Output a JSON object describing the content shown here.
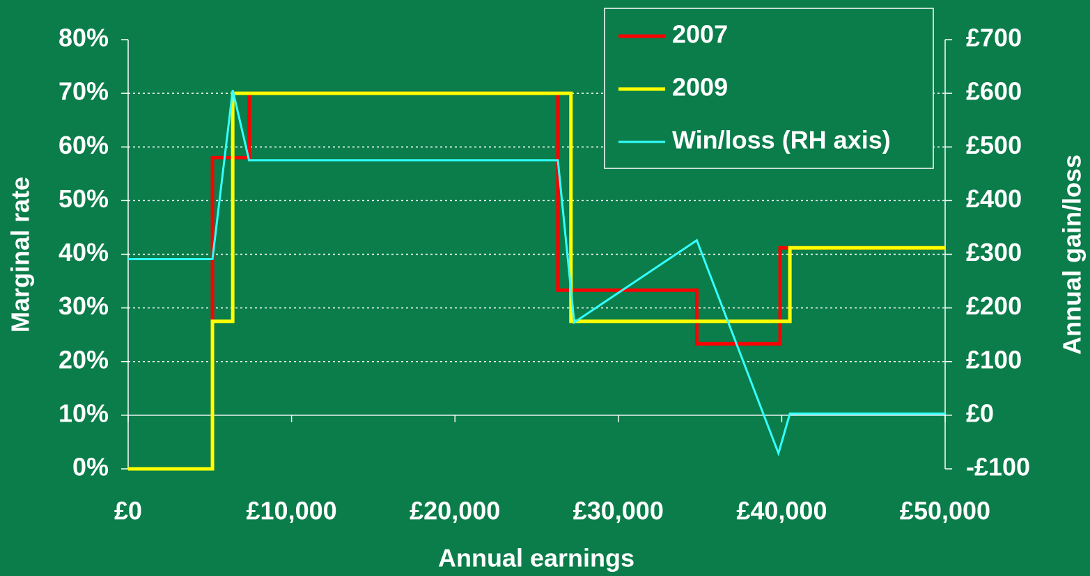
{
  "chart_data": {
    "type": "line",
    "xlabel": "Annual earnings",
    "ylabel": "Marginal rate",
    "y2label": "Annual gain/loss",
    "xlim": [
      0,
      50000
    ],
    "xticks": [
      {
        "value": 0,
        "label": "£0"
      },
      {
        "value": 10000,
        "label": "£10,000"
      },
      {
        "value": 20000,
        "label": "£20,000"
      },
      {
        "value": 30000,
        "label": "£30,000"
      },
      {
        "value": 40000,
        "label": "£40,000"
      },
      {
        "value": 50000,
        "label": "£50,000"
      }
    ],
    "ylim": [
      0,
      80
    ],
    "yticks": [
      {
        "value": 0,
        "label": "0%"
      },
      {
        "value": 10,
        "label": "10%"
      },
      {
        "value": 20,
        "label": "20%"
      },
      {
        "value": 30,
        "label": "30%"
      },
      {
        "value": 40,
        "label": "40%"
      },
      {
        "value": 50,
        "label": "50%"
      },
      {
        "value": 60,
        "label": "60%"
      },
      {
        "value": 70,
        "label": "70%"
      },
      {
        "value": 80,
        "label": "80%"
      }
    ],
    "y2lim": [
      -100,
      700
    ],
    "y2ticks": [
      {
        "value": -100,
        "label": "-£100"
      },
      {
        "value": 0,
        "label": "£0"
      },
      {
        "value": 100,
        "label": "£100"
      },
      {
        "value": 200,
        "label": "£200"
      },
      {
        "value": 300,
        "label": "£300"
      },
      {
        "value": 400,
        "label": "£400"
      },
      {
        "value": 500,
        "label": "£500"
      },
      {
        "value": 600,
        "label": "£600"
      },
      {
        "value": 700,
        "label": "£700"
      }
    ],
    "grid": true,
    "legend": "upper right",
    "series": [
      {
        "name": "2007",
        "color": "#ff0000",
        "width": 5,
        "x": [
          0,
          5160,
          5160,
          7400,
          7400,
          26300,
          26300,
          34800,
          34800,
          39900,
          39900,
          50000
        ],
        "values": [
          0,
          0,
          58,
          58,
          70,
          70,
          33.3,
          33.3,
          23.3,
          23.3,
          41.2,
          41.2
        ]
      },
      {
        "name": "2009",
        "color": "#ffff00",
        "width": 5,
        "x": [
          0,
          5160,
          5160,
          6400,
          6400,
          27100,
          27100,
          40500,
          40500,
          50000
        ],
        "values": [
          0,
          0,
          27.5,
          27.5,
          70,
          70,
          27.5,
          27.5,
          41.2,
          41.2
        ]
      },
      {
        "name": "Win/loss (RH axis)",
        "color": "#33ffff",
        "width": 3,
        "axis": "y2",
        "x": [
          0,
          5160,
          6400,
          7400,
          26300,
          27300,
          34800,
          39800,
          40500,
          50000
        ],
        "values": [
          291,
          291,
          606,
          475,
          475,
          173,
          326,
          -71,
          3,
          3
        ]
      }
    ]
  }
}
